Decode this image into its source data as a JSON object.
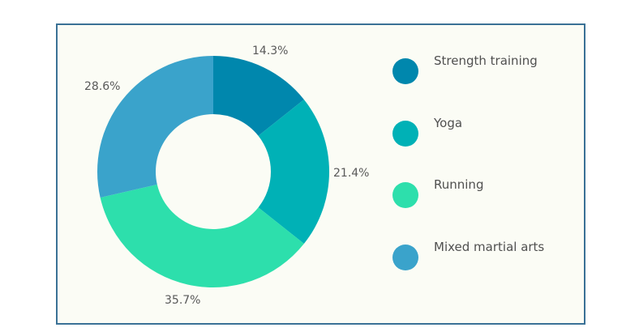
{
  "chart_data": {
    "type": "pie",
    "subtype": "donut",
    "title": "",
    "categories": [
      "Strength training",
      "Yoga",
      "Running",
      "Mixed martial arts"
    ],
    "values": [
      14.3,
      21.4,
      35.7,
      28.6
    ],
    "colors": [
      "#0087ad",
      "#00b1b6",
      "#2ddfac",
      "#3aa3cb"
    ],
    "labels": [
      "14.3%",
      "21.4%",
      "35.7%",
      "28.6%"
    ],
    "legend_position": "right",
    "start_angle_deg": 0,
    "direction": "clockwise"
  },
  "legend": {
    "items": [
      {
        "label": "Strength training",
        "color": "#0087ad"
      },
      {
        "label": "Yoga",
        "color": "#00b1b6"
      },
      {
        "label": "Running",
        "color": "#2ddfac"
      },
      {
        "label": "Mixed martial arts",
        "color": "#3aa3cb"
      }
    ]
  },
  "style": {
    "frame_border": "#3a7196",
    "frame_background": "#fbfcf5"
  }
}
